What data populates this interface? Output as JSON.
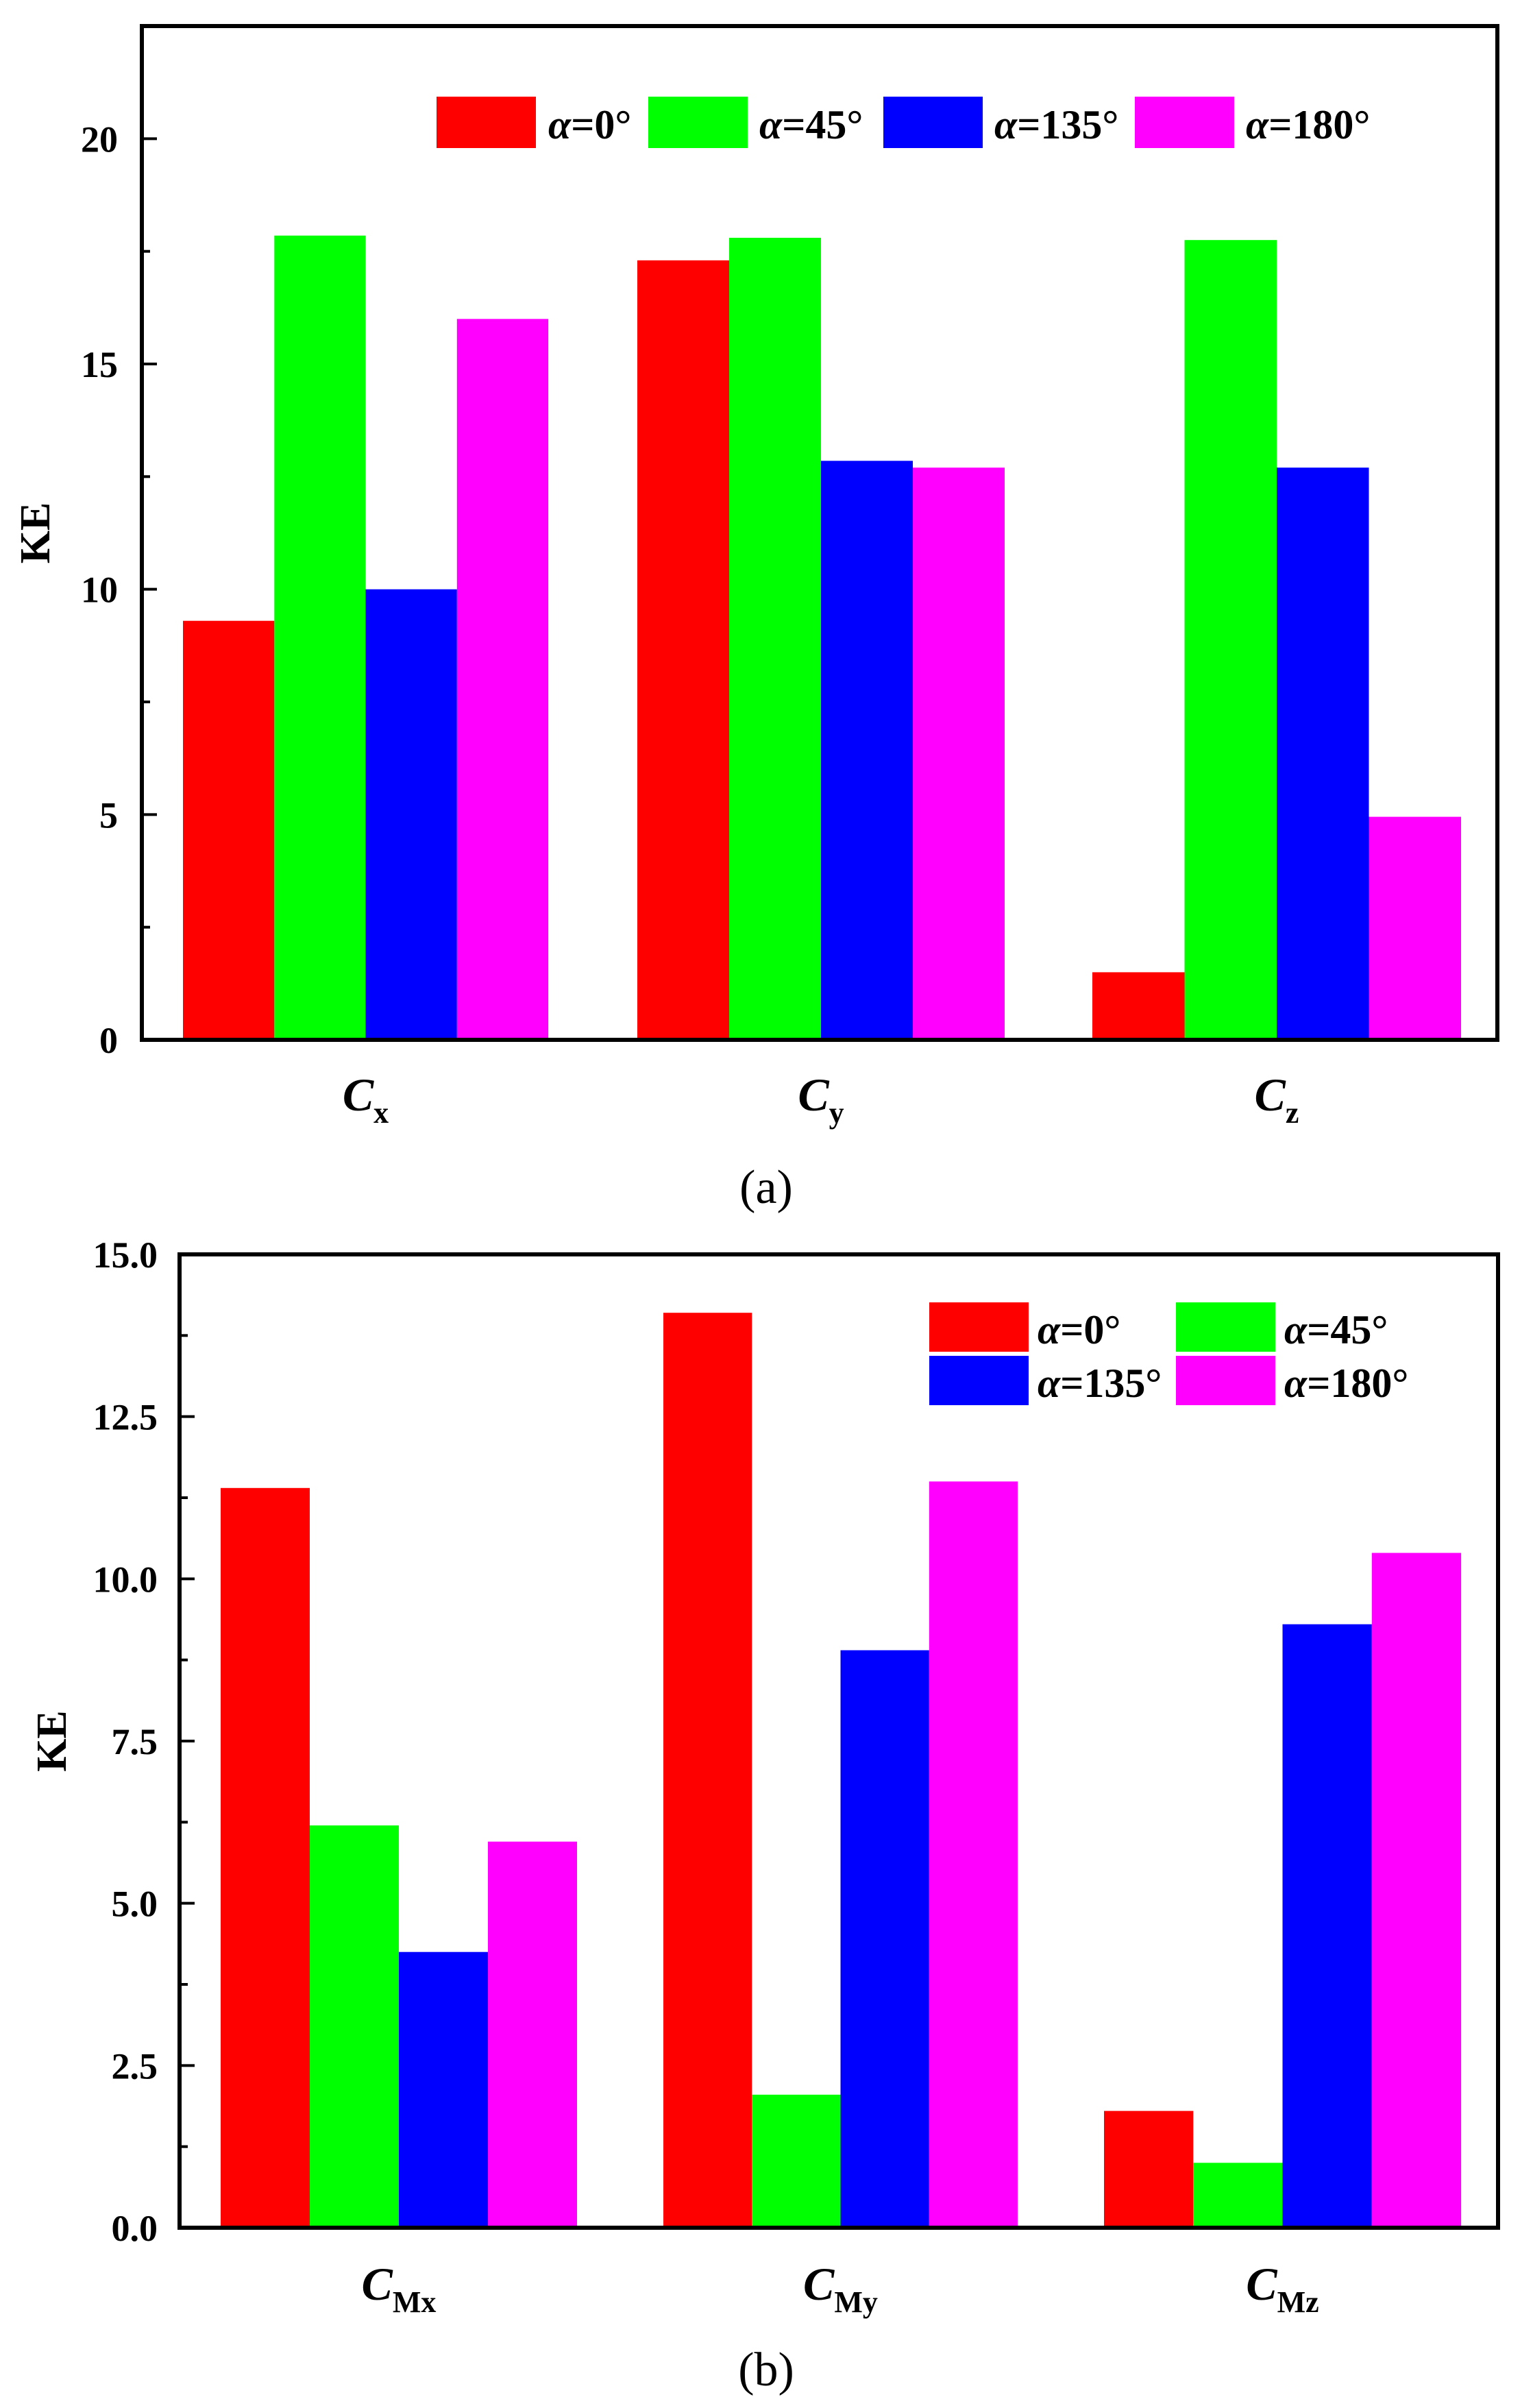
{
  "chart_data": [
    {
      "type": "bar",
      "panel_label": "(a)",
      "ylabel": "KE",
      "xlabel": "",
      "ylim": [
        0,
        22.5
      ],
      "yticks": [
        0,
        5,
        10,
        15,
        20
      ],
      "ytick_labels": [
        "0",
        "5",
        "10",
        "15",
        "20"
      ],
      "categories": [
        {
          "main": "C",
          "sub": "x"
        },
        {
          "main": "C",
          "sub": "y"
        },
        {
          "main": "C",
          "sub": "z"
        }
      ],
      "legend": {
        "placement": "top-right",
        "columns": 4
      },
      "series": [
        {
          "name": "α=0°",
          "symbol": "α",
          "label": "=0°",
          "color": "#ff0000",
          "values": [
            9.3,
            17.3,
            1.5
          ]
        },
        {
          "name": "α=45°",
          "symbol": "α",
          "label": "=45°",
          "color": "#00ff00",
          "values": [
            17.85,
            17.8,
            17.75
          ]
        },
        {
          "name": "α=135°",
          "symbol": "α",
          "label": "=135°",
          "color": "#0000ff",
          "values": [
            10.0,
            12.85,
            12.7
          ]
        },
        {
          "name": "α=180°",
          "symbol": "α",
          "label": "=180°",
          "color": "#ff00ff",
          "values": [
            16.0,
            12.7,
            4.95
          ]
        }
      ]
    },
    {
      "type": "bar",
      "panel_label": "(b)",
      "ylabel": "KE",
      "xlabel": "",
      "ylim": [
        0,
        15.0
      ],
      "yticks": [
        0,
        2.5,
        5.0,
        7.5,
        10.0,
        12.5,
        15.0
      ],
      "ytick_labels": [
        "0.0",
        "2.5",
        "5.0",
        "7.5",
        "10.0",
        "12.5",
        "15.0"
      ],
      "categories": [
        {
          "main": "C",
          "sub": "Mx"
        },
        {
          "main": "C",
          "sub": "My"
        },
        {
          "main": "C",
          "sub": "Mz"
        }
      ],
      "legend": {
        "placement": "top-right",
        "columns": 2
      },
      "series": [
        {
          "name": "α=0°",
          "symbol": "α",
          "label": "=0°",
          "color": "#ff0000",
          "values": [
            11.4,
            14.1,
            1.8
          ]
        },
        {
          "name": "α=45°",
          "symbol": "α",
          "label": "=45°",
          "color": "#00ff00",
          "values": [
            6.2,
            2.05,
            1.0
          ]
        },
        {
          "name": "α=135°",
          "symbol": "α",
          "label": "=135°",
          "color": "#0000ff",
          "values": [
            4.25,
            8.9,
            9.3
          ]
        },
        {
          "name": "α=180°",
          "symbol": "α",
          "label": "=180°",
          "color": "#ff00ff",
          "values": [
            5.95,
            11.5,
            10.4
          ]
        }
      ]
    }
  ]
}
